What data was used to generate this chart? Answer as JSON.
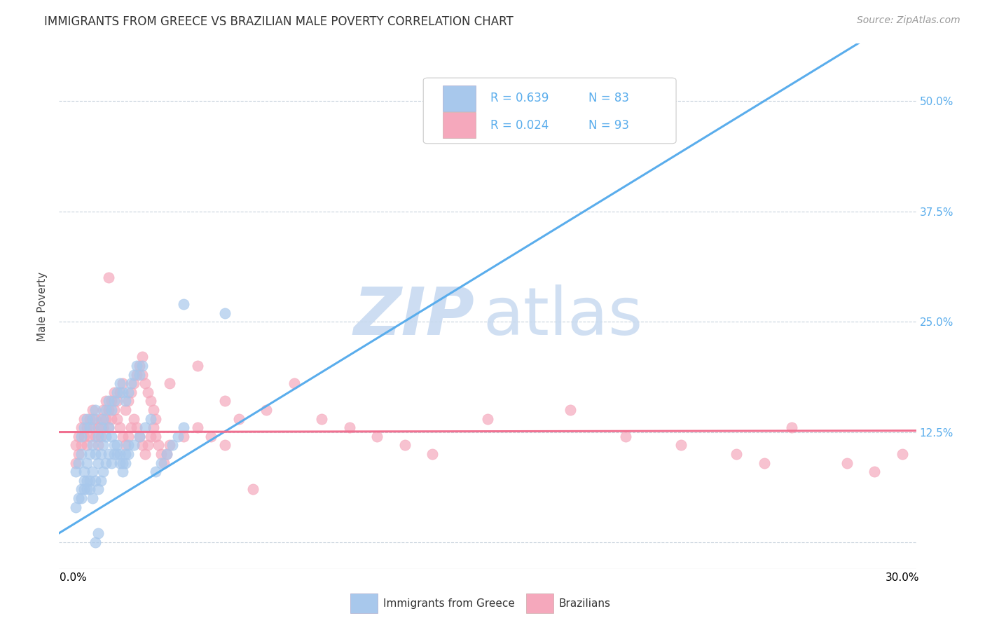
{
  "title": "IMMIGRANTS FROM GREECE VS BRAZILIAN MALE POVERTY CORRELATION CHART",
  "source": "Source: ZipAtlas.com",
  "ylabel": "Male Poverty",
  "ytick_labels": [
    "",
    "12.5%",
    "25.0%",
    "37.5%",
    "50.0%"
  ],
  "ytick_values": [
    0.0,
    0.125,
    0.25,
    0.375,
    0.5
  ],
  "xlim": [
    0.0,
    0.3
  ],
  "ylim": [
    -0.03,
    0.565
  ],
  "legend_label1": "Immigrants from Greece",
  "legend_label2": "Brazilians",
  "legend_R1": "R = 0.639",
  "legend_N1": "N = 83",
  "legend_R2": "R = 0.024",
  "legend_N2": "N = 93",
  "color_greece": "#a8c8ec",
  "color_brazil": "#f5a8bc",
  "line_color_greece": "#5aadec",
  "line_color_brazil": "#f07090",
  "text_color_blue": "#5aadec",
  "watermark_zip_color": "#c5d8f0",
  "watermark_atlas_color": "#c8daf0",
  "greece_scatter_x": [
    0.001,
    0.002,
    0.003,
    0.004,
    0.005,
    0.006,
    0.007,
    0.008,
    0.009,
    0.01,
    0.011,
    0.012,
    0.013,
    0.014,
    0.015,
    0.016,
    0.017,
    0.018,
    0.019,
    0.02,
    0.022,
    0.024,
    0.026,
    0.028,
    0.03,
    0.032,
    0.034,
    0.036,
    0.038,
    0.04,
    0.001,
    0.002,
    0.003,
    0.004,
    0.005,
    0.006,
    0.007,
    0.008,
    0.009,
    0.01,
    0.011,
    0.012,
    0.013,
    0.014,
    0.015,
    0.016,
    0.017,
    0.018,
    0.019,
    0.02,
    0.003,
    0.004,
    0.005,
    0.006,
    0.007,
    0.008,
    0.009,
    0.01,
    0.011,
    0.012,
    0.013,
    0.014,
    0.015,
    0.016,
    0.017,
    0.018,
    0.019,
    0.02,
    0.021,
    0.022,
    0.023,
    0.024,
    0.025,
    0.003,
    0.004,
    0.005,
    0.006,
    0.007,
    0.008,
    0.009,
    0.04,
    0.055,
    0.19
  ],
  "greece_scatter_y": [
    0.08,
    0.09,
    0.1,
    0.08,
    0.09,
    0.1,
    0.11,
    0.1,
    0.09,
    0.1,
    0.11,
    0.12,
    0.13,
    0.12,
    0.11,
    0.1,
    0.09,
    0.08,
    0.09,
    0.1,
    0.11,
    0.12,
    0.13,
    0.14,
    0.08,
    0.09,
    0.1,
    0.11,
    0.12,
    0.13,
    0.04,
    0.05,
    0.06,
    0.07,
    0.06,
    0.07,
    0.08,
    0.07,
    0.06,
    0.07,
    0.08,
    0.09,
    0.1,
    0.09,
    0.1,
    0.11,
    0.1,
    0.09,
    0.1,
    0.11,
    0.12,
    0.13,
    0.14,
    0.13,
    0.14,
    0.15,
    0.12,
    0.13,
    0.14,
    0.15,
    0.16,
    0.15,
    0.16,
    0.17,
    0.18,
    0.17,
    0.16,
    0.17,
    0.18,
    0.19,
    0.2,
    0.19,
    0.2,
    0.05,
    0.06,
    0.07,
    0.06,
    0.05,
    0.0,
    0.01,
    0.27,
    0.26,
    0.5
  ],
  "brazil_scatter_x": [
    0.001,
    0.002,
    0.003,
    0.004,
    0.005,
    0.006,
    0.007,
    0.008,
    0.009,
    0.01,
    0.011,
    0.012,
    0.013,
    0.014,
    0.015,
    0.016,
    0.017,
    0.018,
    0.019,
    0.02,
    0.021,
    0.022,
    0.023,
    0.024,
    0.025,
    0.026,
    0.027,
    0.028,
    0.029,
    0.03,
    0.001,
    0.002,
    0.003,
    0.004,
    0.005,
    0.006,
    0.007,
    0.008,
    0.009,
    0.01,
    0.011,
    0.012,
    0.013,
    0.014,
    0.015,
    0.016,
    0.017,
    0.018,
    0.019,
    0.02,
    0.021,
    0.022,
    0.023,
    0.024,
    0.025,
    0.026,
    0.027,
    0.028,
    0.029,
    0.03,
    0.031,
    0.032,
    0.033,
    0.034,
    0.035,
    0.04,
    0.045,
    0.05,
    0.055,
    0.06,
    0.07,
    0.08,
    0.09,
    0.1,
    0.11,
    0.12,
    0.13,
    0.15,
    0.18,
    0.2,
    0.22,
    0.24,
    0.25,
    0.26,
    0.28,
    0.29,
    0.3,
    0.013,
    0.025,
    0.035,
    0.045,
    0.055,
    0.065
  ],
  "brazil_scatter_y": [
    0.11,
    0.12,
    0.13,
    0.14,
    0.13,
    0.14,
    0.15,
    0.14,
    0.13,
    0.14,
    0.15,
    0.16,
    0.15,
    0.16,
    0.17,
    0.16,
    0.17,
    0.18,
    0.15,
    0.16,
    0.17,
    0.18,
    0.19,
    0.2,
    0.19,
    0.18,
    0.17,
    0.16,
    0.15,
    0.14,
    0.09,
    0.1,
    0.11,
    0.12,
    0.11,
    0.12,
    0.13,
    0.12,
    0.11,
    0.12,
    0.13,
    0.14,
    0.13,
    0.14,
    0.15,
    0.14,
    0.13,
    0.12,
    0.11,
    0.12,
    0.13,
    0.14,
    0.13,
    0.12,
    0.11,
    0.1,
    0.11,
    0.12,
    0.13,
    0.12,
    0.11,
    0.1,
    0.09,
    0.1,
    0.11,
    0.12,
    0.13,
    0.12,
    0.11,
    0.14,
    0.15,
    0.18,
    0.14,
    0.13,
    0.12,
    0.11,
    0.1,
    0.14,
    0.15,
    0.12,
    0.11,
    0.1,
    0.09,
    0.13,
    0.09,
    0.08,
    0.1,
    0.3,
    0.21,
    0.18,
    0.2,
    0.16,
    0.06
  ]
}
